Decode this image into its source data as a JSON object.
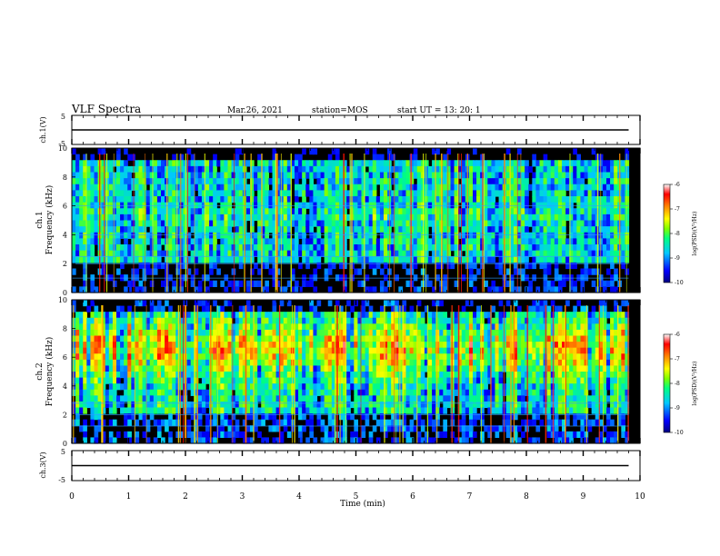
{
  "header": {
    "title": "VLF Spectra",
    "date": "Mar.26, 2021",
    "station": "station=MOS",
    "start": "start  UT  =   13: 20: 1"
  },
  "chart_data": [
    {
      "type": "line",
      "name": "ch1-waveform",
      "ylabel": "ch.1(V)",
      "ylim": [
        -5,
        5
      ],
      "yticks": [
        "5",
        "-5"
      ],
      "xlim": [
        0,
        10
      ],
      "x": [
        0,
        9.8
      ],
      "values": [
        0,
        0
      ]
    },
    {
      "type": "heatmap",
      "name": "ch1-spectrogram",
      "ylabel_top": "ch.1",
      "ylabel": "Frequency (kHz)",
      "ylim": [
        0,
        10
      ],
      "yticks": [
        "0",
        "2",
        "4",
        "6",
        "8",
        "10"
      ],
      "xlim": [
        0,
        9.8
      ],
      "colorbar": {
        "label": "log(PSD)(V²/Hz)",
        "range": [
          -10,
          -6
        ],
        "ticks": [
          "-6",
          "-7",
          "-8",
          "-9",
          "-10"
        ],
        "colormap": [
          "#000080",
          "#0000ff",
          "#00c8ff",
          "#00ff80",
          "#80ff00",
          "#ffff00",
          "#ff8000",
          "#ff0000",
          "#ffffff"
        ]
      }
    },
    {
      "type": "heatmap",
      "name": "ch2-spectrogram",
      "ylabel_top": "ch.2",
      "ylabel": "Frequency (kHz)",
      "ylim": [
        0,
        10
      ],
      "yticks": [
        "0",
        "2",
        "4",
        "6",
        "8",
        "10"
      ],
      "xlim": [
        0,
        9.8
      ],
      "colorbar": {
        "label": "log(PSD)(V²/Hz)",
        "range": [
          -10,
          -6
        ],
        "ticks": [
          "-6",
          "-7",
          "-8",
          "-9",
          "-10"
        ],
        "colormap": [
          "#000080",
          "#0000ff",
          "#00c8ff",
          "#00ff80",
          "#80ff00",
          "#ffff00",
          "#ff8000",
          "#ff0000",
          "#ffffff"
        ]
      }
    },
    {
      "type": "line",
      "name": "ch3-waveform",
      "ylabel": "ch.3(V)",
      "ylim": [
        -5,
        5
      ],
      "yticks": [
        "5",
        "-5"
      ],
      "xlim": [
        0,
        10
      ],
      "x": [
        0,
        9.8
      ],
      "values": [
        0,
        0
      ]
    }
  ],
  "xaxis": {
    "label": "Time  (min)",
    "ticks": [
      "0",
      "1",
      "2",
      "3",
      "4",
      "5",
      "6",
      "7",
      "8",
      "9",
      "10"
    ],
    "range": [
      0,
      10
    ]
  }
}
